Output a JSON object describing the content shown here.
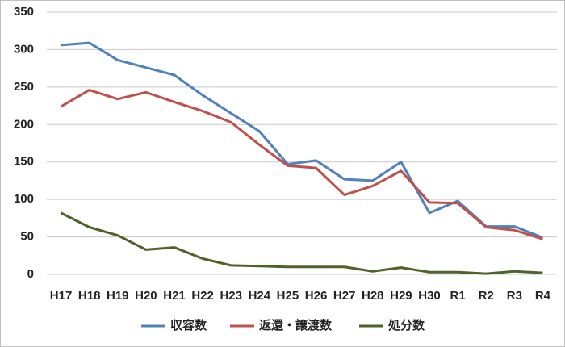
{
  "chart_data": {
    "type": "line",
    "categories": [
      "H17",
      "H18",
      "H19",
      "H20",
      "H21",
      "H22",
      "H23",
      "H24",
      "H25",
      "H26",
      "H27",
      "H28",
      "H29",
      "H30",
      "R1",
      "R2",
      "R3",
      "R4"
    ],
    "series": [
      {
        "name": "収容数",
        "color": "#4f81bd",
        "values": [
          306,
          309,
          286,
          276,
          266,
          239,
          215,
          191,
          147,
          152,
          127,
          125,
          150,
          82,
          98,
          64,
          64,
          49
        ]
      },
      {
        "name": "返還・譲渡数",
        "color": "#c0504d",
        "values": [
          224,
          246,
          234,
          243,
          230,
          218,
          203,
          173,
          145,
          142,
          106,
          118,
          138,
          96,
          95,
          63,
          59,
          47
        ]
      },
      {
        "name": "処分数",
        "color": "#4f6228",
        "values": [
          82,
          63,
          52,
          33,
          36,
          21,
          12,
          11,
          10,
          10,
          10,
          4,
          9,
          3,
          3,
          1,
          4,
          2
        ]
      }
    ],
    "ylim": [
      0,
      350
    ],
    "yticks": [
      0,
      50,
      100,
      150,
      200,
      250,
      300,
      350
    ],
    "grid": true,
    "legend": "bottom"
  }
}
